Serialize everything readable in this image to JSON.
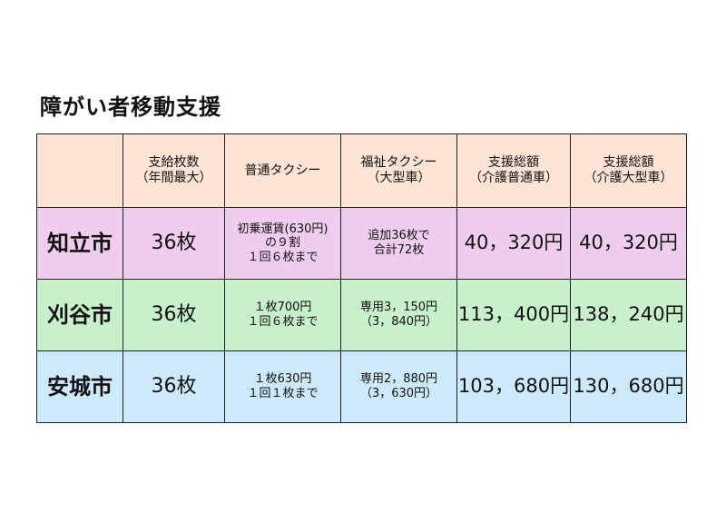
{
  "title": "障がい者移動支援",
  "colors": {
    "header": "#fde4d4",
    "row_chiryu": "#f0cdee",
    "row_kariya": "#c8f0ca",
    "row_anjo": "#cdeafb"
  },
  "table": {
    "headers": [
      {
        "line1": "",
        "line2": ""
      },
      {
        "line1": "支給枚数",
        "line2": "（年間最大）"
      },
      {
        "line1": "普通タクシー",
        "line2": ""
      },
      {
        "line1": "福祉タクシー",
        "line2": "（大型車）"
      },
      {
        "line1": "支援総額",
        "line2": "（介護普通車）"
      },
      {
        "line1": "支援総額",
        "line2": "（介護大型車）"
      }
    ],
    "rows": [
      {
        "city": "知立市",
        "count": "36枚",
        "taxi": [
          "初乗運賃(630円)",
          "の９割",
          "１回６枚まで"
        ],
        "welfare": [
          "追加36枚で",
          "合計72枚"
        ],
        "total_normal": "40，320円",
        "total_large": "40，320円"
      },
      {
        "city": "刈谷市",
        "count": "36枚",
        "taxi": [
          "１枚700円",
          "１回６枚まで",
          ""
        ],
        "welfare": [
          "専用3，150円",
          "（3，840円）"
        ],
        "total_normal": "113，400円",
        "total_large": "138，240円"
      },
      {
        "city": "安城市",
        "count": "36枚",
        "taxi": [
          "１枚630円",
          "１回１枚まで",
          ""
        ],
        "welfare": [
          "専用2，880円",
          "（3，630円）"
        ],
        "total_normal": "103，680円",
        "total_large": "130，680円"
      }
    ]
  }
}
